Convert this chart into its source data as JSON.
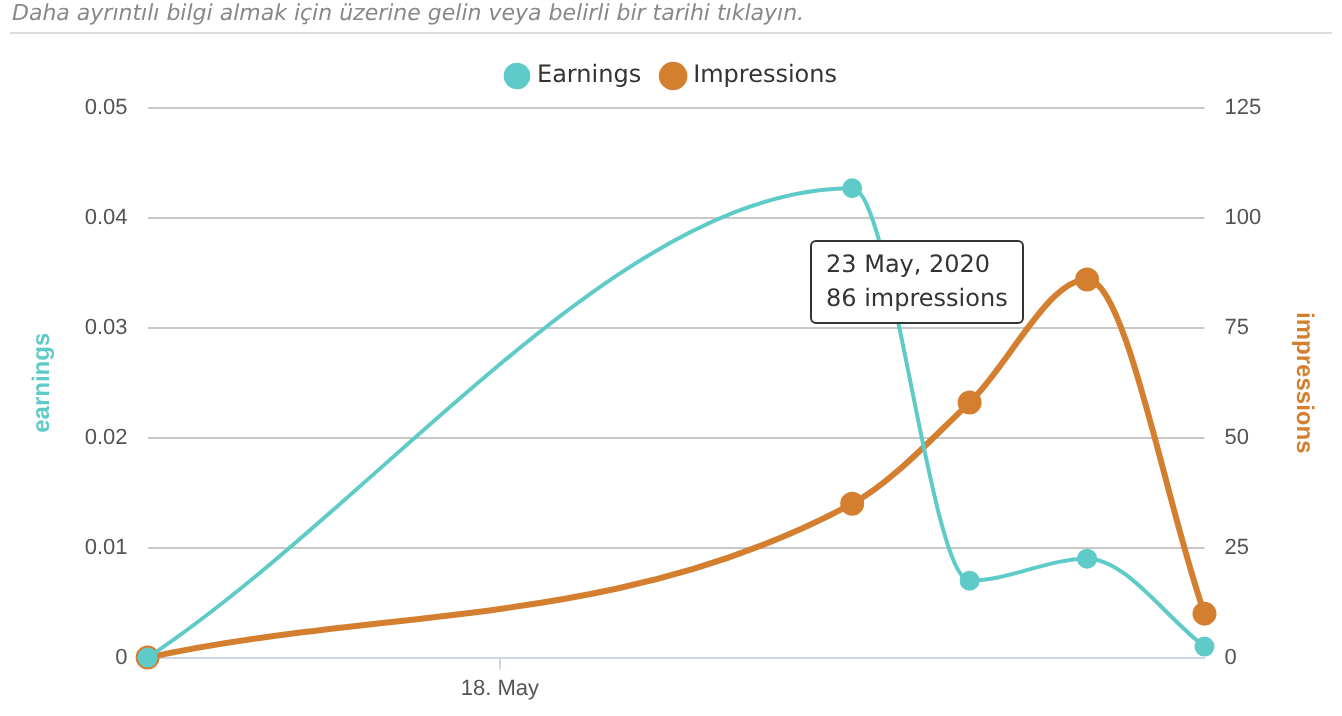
{
  "chart_data": {
    "type": "line",
    "subtitle": "Daha ayrıntılı bilgi almak için üzerine gelin veya belirli bir tarihi tıklayın.",
    "categories": [
      null,
      null,
      null,
      "18. May",
      null,
      null,
      null,
      null,
      null,
      null
    ],
    "series": [
      {
        "name": "Earnings",
        "color": "#5ecbc8",
        "values": [
          0,
          null,
          null,
          null,
          null,
          null,
          0.0427,
          0.007,
          0.009,
          0.001
        ]
      },
      {
        "name": "Impressions",
        "color": "#d47f2f",
        "axis": "y2",
        "values": [
          0,
          null,
          null,
          null,
          null,
          null,
          35,
          58,
          86,
          10
        ]
      }
    ],
    "ylabel": "earnings",
    "y2label": "impressions",
    "ylim": [
      0,
      0.05
    ],
    "yticks": [
      0,
      0.01,
      0.02,
      0.03,
      0.04,
      0.05
    ],
    "y2lim": [
      0,
      125
    ],
    "y2ticks": [
      0,
      25,
      50,
      75,
      100,
      125
    ],
    "grid": "y",
    "legend": "top",
    "marker": "circle",
    "annotations": [
      "23 May, 2020\n86 impressions"
    ]
  }
}
